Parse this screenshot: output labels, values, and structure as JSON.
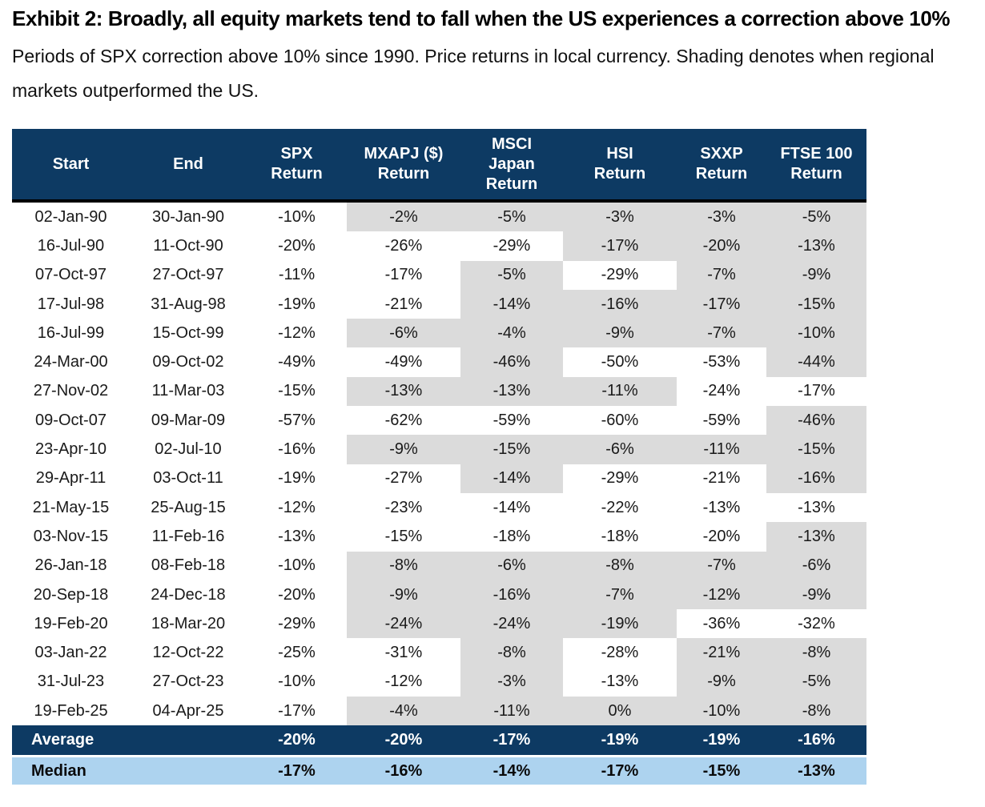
{
  "header": {
    "title": "Exhibit 2: Broadly, all equity markets tend to fall when the US experiences a correction above 10%",
    "subtitle": "Periods of SPX correction above 10% since 1990. Price returns in local currency. Shading denotes when regional\nmarkets outperformed the US."
  },
  "colors": {
    "header_bg": "#0d3a63",
    "average_row_bg": "#0d3a63",
    "median_row_bg": "#add3ef",
    "shaded_cell_bg": "#dbdbdb",
    "header_text": "#ffffff",
    "body_text": "#1a1a1a"
  },
  "table": {
    "columns": [
      "Start",
      "End",
      "SPX\nReturn",
      "MXAPJ ($)\nReturn",
      "MSCI\nJapan\nReturn",
      "HSI\nReturn",
      "SXXP\nReturn",
      "FTSE 100\nReturn"
    ],
    "value_keys": [
      "spx",
      "mxapj",
      "msci-japan",
      "hsi",
      "sxxp",
      "ftse100"
    ],
    "rows": [
      {
        "start": "02-Jan-90",
        "end": "30-Jan-90",
        "values": [
          "-10%",
          "-2%",
          "-5%",
          "-3%",
          "-3%",
          "-5%"
        ],
        "shaded": [
          false,
          true,
          true,
          true,
          true,
          true
        ]
      },
      {
        "start": "16-Jul-90",
        "end": "11-Oct-90",
        "values": [
          "-20%",
          "-26%",
          "-29%",
          "-17%",
          "-20%",
          "-13%"
        ],
        "shaded": [
          false,
          false,
          false,
          true,
          true,
          true
        ]
      },
      {
        "start": "07-Oct-97",
        "end": "27-Oct-97",
        "values": [
          "-11%",
          "-17%",
          "-5%",
          "-29%",
          "-7%",
          "-9%"
        ],
        "shaded": [
          false,
          false,
          true,
          false,
          true,
          true
        ]
      },
      {
        "start": "17-Jul-98",
        "end": "31-Aug-98",
        "values": [
          "-19%",
          "-21%",
          "-14%",
          "-16%",
          "-17%",
          "-15%"
        ],
        "shaded": [
          false,
          false,
          true,
          true,
          true,
          true
        ]
      },
      {
        "start": "16-Jul-99",
        "end": "15-Oct-99",
        "values": [
          "-12%",
          "-6%",
          "-4%",
          "-9%",
          "-7%",
          "-10%"
        ],
        "shaded": [
          false,
          true,
          true,
          true,
          true,
          true
        ]
      },
      {
        "start": "24-Mar-00",
        "end": "09-Oct-02",
        "values": [
          "-49%",
          "-49%",
          "-46%",
          "-50%",
          "-53%",
          "-44%"
        ],
        "shaded": [
          false,
          false,
          true,
          false,
          false,
          true
        ]
      },
      {
        "start": "27-Nov-02",
        "end": "11-Mar-03",
        "values": [
          "-15%",
          "-13%",
          "-13%",
          "-11%",
          "-24%",
          "-17%"
        ],
        "shaded": [
          false,
          true,
          true,
          true,
          false,
          false
        ]
      },
      {
        "start": "09-Oct-07",
        "end": "09-Mar-09",
        "values": [
          "-57%",
          "-62%",
          "-59%",
          "-60%",
          "-59%",
          "-46%"
        ],
        "shaded": [
          false,
          false,
          false,
          false,
          false,
          true
        ]
      },
      {
        "start": "23-Apr-10",
        "end": "02-Jul-10",
        "values": [
          "-16%",
          "-9%",
          "-15%",
          "-6%",
          "-11%",
          "-15%"
        ],
        "shaded": [
          false,
          true,
          true,
          true,
          true,
          true
        ]
      },
      {
        "start": "29-Apr-11",
        "end": "03-Oct-11",
        "values": [
          "-19%",
          "-27%",
          "-14%",
          "-29%",
          "-21%",
          "-16%"
        ],
        "shaded": [
          false,
          false,
          true,
          false,
          false,
          true
        ]
      },
      {
        "start": "21-May-15",
        "end": "25-Aug-15",
        "values": [
          "-12%",
          "-23%",
          "-14%",
          "-22%",
          "-13%",
          "-13%"
        ],
        "shaded": [
          false,
          false,
          false,
          false,
          false,
          false
        ]
      },
      {
        "start": "03-Nov-15",
        "end": "11-Feb-16",
        "values": [
          "-13%",
          "-15%",
          "-18%",
          "-18%",
          "-20%",
          "-13%"
        ],
        "shaded": [
          false,
          false,
          false,
          false,
          false,
          true
        ]
      },
      {
        "start": "26-Jan-18",
        "end": "08-Feb-18",
        "values": [
          "-10%",
          "-8%",
          "-6%",
          "-8%",
          "-7%",
          "-6%"
        ],
        "shaded": [
          false,
          true,
          true,
          true,
          true,
          true
        ]
      },
      {
        "start": "20-Sep-18",
        "end": "24-Dec-18",
        "values": [
          "-20%",
          "-9%",
          "-16%",
          "-7%",
          "-12%",
          "-9%"
        ],
        "shaded": [
          false,
          true,
          true,
          true,
          true,
          true
        ]
      },
      {
        "start": "19-Feb-20",
        "end": "18-Mar-20",
        "values": [
          "-29%",
          "-24%",
          "-24%",
          "-19%",
          "-36%",
          "-32%"
        ],
        "shaded": [
          false,
          true,
          true,
          true,
          false,
          false
        ]
      },
      {
        "start": "03-Jan-22",
        "end": "12-Oct-22",
        "values": [
          "-25%",
          "-31%",
          "-8%",
          "-28%",
          "-21%",
          "-8%"
        ],
        "shaded": [
          false,
          false,
          true,
          false,
          true,
          true
        ]
      },
      {
        "start": "31-Jul-23",
        "end": "27-Oct-23",
        "values": [
          "-10%",
          "-12%",
          "-3%",
          "-13%",
          "-9%",
          "-5%"
        ],
        "shaded": [
          false,
          false,
          true,
          false,
          true,
          true
        ]
      },
      {
        "start": "19-Feb-25",
        "end": "04-Apr-25",
        "values": [
          "-17%",
          "-4%",
          "-11%",
          "0%",
          "-10%",
          "-8%"
        ],
        "shaded": [
          false,
          true,
          true,
          true,
          true,
          true
        ]
      }
    ],
    "average": {
      "label": "Average",
      "values": [
        "-20%",
        "-20%",
        "-17%",
        "-19%",
        "-19%",
        "-16%"
      ]
    },
    "median": {
      "label": "Median",
      "values": [
        "-17%",
        "-16%",
        "-14%",
        "-17%",
        "-15%",
        "-13%"
      ]
    }
  }
}
